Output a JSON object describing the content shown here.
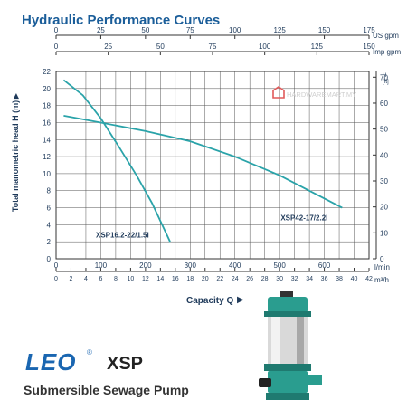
{
  "title": "Hydraulic Performance Curves",
  "watermark": {
    "text": "HARDWAREMART.MY"
  },
  "brand": {
    "logo": "LEO",
    "registered": "®",
    "series": "XSP",
    "subtitle": "Submersible Sewage Pump"
  },
  "colors": {
    "curve": "#2aa3a9",
    "grid": "#333333",
    "title": "#1a5d99",
    "text": "#1f3a5a",
    "pump_body": "#2a9d8f"
  },
  "icons": {
    "pump": "pump-image-icon",
    "watermark": "hardwaremart-logo-icon"
  },
  "chart_data": {
    "type": "line",
    "title": "Hydraulic Performance Curves",
    "ylabel": "Total manometric head H (m)",
    "ylabel_arrow": "▶",
    "xlabel": "Capacity Q",
    "xlabel_arrow": "▶",
    "grid": true,
    "ylim": [
      0,
      22
    ],
    "yticks": [
      "0",
      "2",
      "4",
      "6",
      "8",
      "10",
      "12",
      "14",
      "16",
      "18",
      "20",
      "22"
    ],
    "right_axis": {
      "unit": "H [ft]",
      "unit_top": "H",
      "unit_bottom": "[ft]",
      "ticks": [
        "0",
        "10",
        "20",
        "30",
        "40",
        "50",
        "60",
        "70"
      ],
      "range": [
        0,
        72.2
      ]
    },
    "x_axes": [
      {
        "unit": "US gpm",
        "ticks": [
          "0",
          "25",
          "50",
          "75",
          "100",
          "125",
          "150",
          "175"
        ],
        "range": [
          0,
          175
        ]
      },
      {
        "unit": "Imp gpm",
        "ticks": [
          "0",
          "25",
          "50",
          "75",
          "100",
          "125",
          "150"
        ],
        "range": [
          0,
          150
        ]
      },
      {
        "unit": "l/min",
        "ticks": [
          "0",
          "100",
          "200",
          "300",
          "400",
          "500",
          "600"
        ],
        "range": [
          0,
          700
        ]
      },
      {
        "unit": "m³/h",
        "ticks": [
          "0",
          "2",
          "4",
          "6",
          "8",
          "10",
          "12",
          "14",
          "16",
          "18",
          "20",
          "22",
          "24",
          "26",
          "28",
          "30",
          "32",
          "34",
          "36",
          "38",
          "40",
          "42"
        ],
        "range": [
          0,
          42
        ]
      }
    ],
    "series": [
      {
        "name": "XSP16.2-22/1.5I",
        "unit": "l/min",
        "x": [
          17,
          60,
          100,
          140,
          180,
          215,
          255
        ],
        "y": [
          21,
          19.2,
          16.5,
          13.2,
          9.8,
          6.5,
          2
        ]
      },
      {
        "name": "XSP42-17/2.2I",
        "unit": "l/min",
        "x": [
          17,
          100,
          200,
          300,
          400,
          500,
          640
        ],
        "y": [
          16.8,
          16,
          15,
          13.8,
          12,
          9.8,
          6
        ]
      }
    ]
  }
}
